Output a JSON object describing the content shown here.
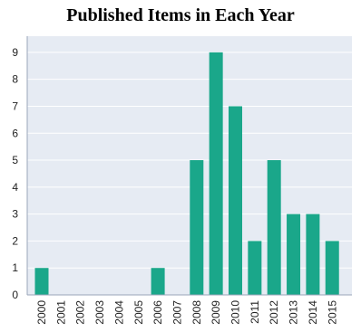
{
  "chart_data": {
    "type": "bar",
    "title": "Published Items in Each Year",
    "xlabel": "",
    "ylabel": "",
    "categories": [
      "2000",
      "2001",
      "2002",
      "2003",
      "2004",
      "2005",
      "2006",
      "2007",
      "2008",
      "2009",
      "2010",
      "2011",
      "2012",
      "2013",
      "2014",
      "2015"
    ],
    "values": [
      1,
      0,
      0,
      0,
      0,
      0,
      1,
      0,
      5,
      9,
      7,
      2,
      5,
      3,
      3,
      2
    ],
    "yticks": [
      "0",
      "1",
      "2",
      "3",
      "4",
      "5",
      "6",
      "7",
      "8",
      "9"
    ],
    "ylim": [
      0,
      9.6
    ],
    "grid": true,
    "legend": "none",
    "colors": {
      "bar": "#1aa78a",
      "plot_background": "#e6ebf3",
      "grid": "#ffffff",
      "axis": "#9aa6b8"
    }
  }
}
